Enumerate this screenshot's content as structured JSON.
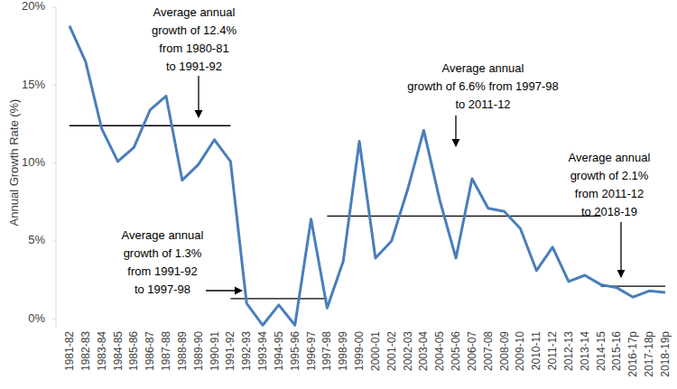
{
  "chart_data": {
    "type": "line",
    "y_label": "Annual Growth Rate (%)",
    "categories": [
      "1981-82",
      "1982-83",
      "1983-84",
      "1984-85",
      "1985-86",
      "1986-87",
      "1987-88",
      "1988-89",
      "1989-90",
      "1990-91",
      "1991-92",
      "1992-93",
      "1993-94",
      "1994-95",
      "1995-96",
      "1996-97",
      "1997-98",
      "1998-99",
      "1999-00",
      "2000-01",
      "2001-02",
      "2002-03",
      "2003-04",
      "2004-05",
      "2005-06",
      "2006-07",
      "2007-08",
      "2008-09",
      "2009-10",
      "2010-11",
      "2011-12",
      "2012-13",
      "2013-14",
      "2014-15",
      "2015-16",
      "2016-17p",
      "2017-18p",
      "2018-19p"
    ],
    "values": [
      18.8,
      16.5,
      12.2,
      10.1,
      11.0,
      13.4,
      14.3,
      8.9,
      9.9,
      11.5,
      10.1,
      1.0,
      -0.4,
      0.9,
      -0.4,
      6.4,
      0.7,
      3.7,
      11.4,
      3.9,
      5.0,
      8.3,
      12.1,
      7.6,
      3.9,
      9.0,
      7.1,
      6.9,
      5.8,
      3.1,
      4.6,
      2.4,
      2.8,
      2.2,
      2.0,
      1.4,
      1.8,
      1.7
    ],
    "color": "#4a7ebb",
    "ylim": [
      -0.5,
      20
    ],
    "yticks": [
      {
        "value": 0,
        "label": "0%"
      },
      {
        "value": 5,
        "label": "5%"
      },
      {
        "value": 10,
        "label": "10%"
      },
      {
        "value": 15,
        "label": "15%"
      },
      {
        "value": 20,
        "label": "20%"
      }
    ],
    "grid": false,
    "annotations": [
      {
        "value": 12.4,
        "start": "1981-82",
        "end": "1991-92",
        "text": [
          "Average annual",
          "growth of 12.4%",
          "from 1980-81",
          "to 1991-92"
        ]
      },
      {
        "value": 1.3,
        "start": "1991-92",
        "end": "1997-98",
        "text": [
          "Average annual",
          "growth of 1.3%",
          "from 1991-92",
          "to 1997-98"
        ]
      },
      {
        "value": 6.6,
        "start": "1997-98",
        "end": "2014-15",
        "text": [
          "Average annual",
          "growth of 6.6% from 1997-98",
          "to 2011-12"
        ]
      },
      {
        "value": 2.1,
        "start": "2014-15",
        "end": "2018-19p",
        "text": [
          "Average annual",
          "growth of 2.1%",
          "from 2011-12",
          "to 2018-19"
        ]
      }
    ]
  }
}
